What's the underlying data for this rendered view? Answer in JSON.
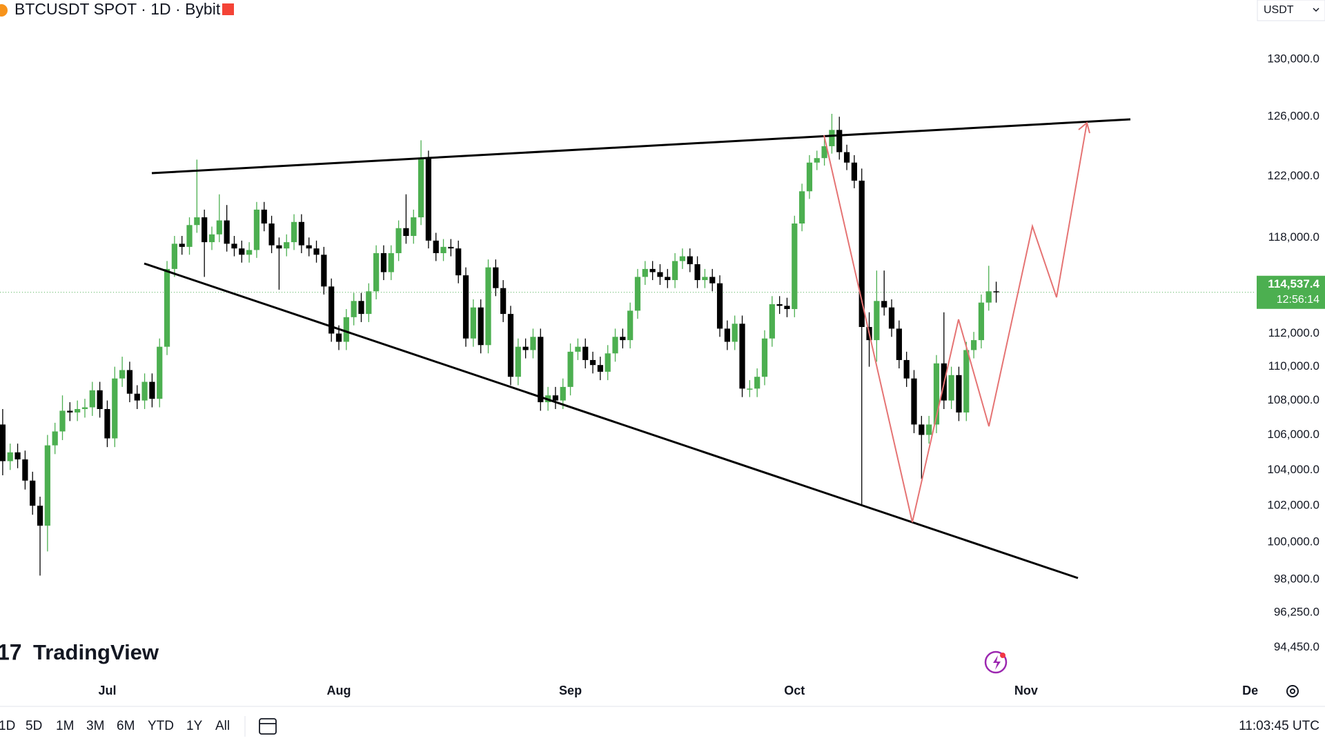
{
  "header": {
    "symbol": "BTCUSDT SPOT · 1D · Bybit",
    "currency": "USDT"
  },
  "brand": "TradingView",
  "toolbar": {
    "ranges": [
      "1D",
      "5D",
      "1M",
      "3M",
      "6M",
      "YTD",
      "1Y",
      "All"
    ],
    "clock": "11:03:45 UTC"
  },
  "chart_data": {
    "type": "candlestick",
    "log_scale": true,
    "grid": false,
    "up_color": "#4caf50",
    "down_color": "#000000",
    "ylim": [
      91500,
      134250
    ],
    "yticks": [
      {
        "value": 130000,
        "label": "130,000.0"
      },
      {
        "value": 126000,
        "label": "126,000.0"
      },
      {
        "value": 122000,
        "label": "122,000.0"
      },
      {
        "value": 118000,
        "label": "118,000.0"
      },
      {
        "value": 112000,
        "label": "112,000.0"
      },
      {
        "value": 110000,
        "label": "110,000.0"
      },
      {
        "value": 108000,
        "label": "108,000.0"
      },
      {
        "value": 106000,
        "label": "106,000.0"
      },
      {
        "value": 104000,
        "label": "104,000.0"
      },
      {
        "value": 102000,
        "label": "102,000.0"
      },
      {
        "value": 100000,
        "label": "100,000.0"
      },
      {
        "value": 98000,
        "label": "98,000.0"
      },
      {
        "value": 96250,
        "label": "96,250.0"
      },
      {
        "value": 94450,
        "label": "94,450.0"
      }
    ],
    "last_price": {
      "value": 114537.4,
      "label": "114,537.4"
    },
    "countdown": "12:56:14",
    "categories": [
      null,
      null,
      null,
      null,
      null,
      null,
      null,
      null,
      null,
      null,
      null,
      null,
      null,
      null,
      "Jul",
      null,
      null,
      null,
      null,
      null,
      null,
      null,
      null,
      null,
      null,
      null,
      null,
      null,
      null,
      null,
      null,
      null,
      null,
      null,
      null,
      null,
      null,
      null,
      null,
      null,
      null,
      null,
      null,
      null,
      null,
      "Aug",
      null,
      null,
      null,
      null,
      null,
      null,
      null,
      null,
      null,
      null,
      null,
      null,
      null,
      null,
      null,
      null,
      null,
      null,
      null,
      null,
      null,
      null,
      null,
      null,
      null,
      null,
      null,
      null,
      null,
      null,
      "Sep",
      null,
      null,
      null,
      null,
      null,
      null,
      null,
      null,
      null,
      null,
      null,
      null,
      null,
      null,
      null,
      null,
      null,
      null,
      null,
      null,
      null,
      null,
      null,
      null,
      null,
      null,
      null,
      null,
      null,
      "Oct",
      null,
      null,
      null,
      null,
      null,
      null,
      null,
      null,
      null,
      null,
      null,
      null,
      null,
      null,
      null,
      null,
      null,
      null,
      null,
      null,
      null,
      null,
      null,
      null,
      null,
      null,
      null,
      null,
      null,
      null,
      "Nov",
      null,
      null,
      null,
      null,
      null,
      null,
      null,
      null,
      null,
      null,
      null,
      null,
      null,
      null,
      null,
      null,
      null,
      null,
      null,
      null,
      null,
      null,
      null,
      null,
      null,
      null,
      null,
      null,
      null,
      "De"
    ],
    "open": [
      106600,
      104500,
      105000,
      104600,
      103400,
      102000,
      100900,
      105400,
      106200,
      107400,
      107300,
      107500,
      107600,
      108600,
      107500,
      105800,
      109300,
      109800,
      108400,
      108000,
      109100,
      108100,
      111200,
      116000,
      117600,
      117400,
      118800,
      119300,
      117700,
      118200,
      119100,
      117600,
      117300,
      116900,
      117200,
      119800,
      118900,
      117500,
      117300,
      117700,
      119000,
      117500,
      117300,
      116900,
      114900,
      112000,
      111500,
      113000,
      114000,
      113200,
      114600,
      117000,
      115800,
      117000,
      118600,
      118100,
      119300,
      123200,
      117800,
      117000,
      117400,
      117300,
      115600,
      111700,
      113600,
      111300,
      116100,
      114800,
      113200,
      109400,
      111200,
      111000,
      111800,
      107900,
      108300,
      108000,
      108800,
      110900,
      111200,
      110400,
      110100,
      109700,
      110800,
      111800,
      111600,
      113400,
      115500,
      116000,
      115800,
      115500,
      115300,
      116500,
      116800,
      116300,
      115300,
      115500,
      115100,
      112300,
      111500,
      112600,
      108700,
      108700,
      109400,
      111700,
      113800,
      113700,
      113500,
      118900,
      121000,
      122900,
      123200,
      124000,
      125100,
      123600,
      122900,
      121700,
      112400,
      111600,
      114000,
      113600,
      112300,
      110400,
      109300,
      106600,
      106000,
      106600,
      110200,
      108000,
      109500,
      107300,
      111000,
      111600,
      113900,
      114600,
      null,
      null,
      null,
      null,
      null,
      null,
      null,
      null,
      null,
      null,
      null,
      null,
      null,
      null,
      null,
      null,
      null,
      null,
      null,
      null,
      null,
      null,
      null,
      null,
      null,
      null,
      null,
      null,
      null,
      null,
      null,
      null,
      null,
      null
    ],
    "high": [
      107500,
      105500,
      105500,
      105100,
      103900,
      102500,
      106000,
      106700,
      108300,
      107900,
      108000,
      108100,
      109100,
      109100,
      108000,
      110000,
      110600,
      110300,
      108900,
      109600,
      109600,
      111700,
      116500,
      118100,
      118100,
      119300,
      123100,
      119800,
      118700,
      120800,
      120100,
      118100,
      117800,
      117700,
      120300,
      120300,
      119400,
      118000,
      118200,
      119500,
      119500,
      118000,
      117800,
      117400,
      115400,
      112500,
      113500,
      114500,
      114500,
      115100,
      117500,
      117500,
      117500,
      119100,
      120800,
      119800,
      124400,
      123700,
      118300,
      117900,
      117900,
      117800,
      116100,
      114100,
      114100,
      116600,
      116600,
      115300,
      113700,
      111700,
      111700,
      112300,
      112300,
      108800,
      108800,
      109300,
      111400,
      111700,
      111700,
      110900,
      110600,
      111300,
      112300,
      112300,
      113900,
      116000,
      116500,
      116500,
      116300,
      116000,
      117000,
      117300,
      117300,
      116800,
      116000,
      116000,
      115600,
      112800,
      113100,
      113100,
      109200,
      109900,
      112200,
      114300,
      114300,
      114200,
      119400,
      121500,
      123400,
      123700,
      124500,
      126200,
      126000,
      124100,
      123400,
      122500,
      113300,
      115900,
      115900,
      114100,
      112800,
      110900,
      109800,
      107100,
      107100,
      110700,
      113300,
      110000,
      110000,
      111500,
      112100,
      114400,
      116200,
      115200,
      null,
      null,
      null,
      null,
      null,
      null,
      null,
      null,
      null,
      null,
      null,
      null,
      null,
      null,
      null,
      null,
      null,
      null,
      null,
      null,
      null,
      null,
      null,
      null,
      null,
      null,
      null,
      null,
      null,
      null,
      null,
      null,
      null,
      null
    ],
    "low": [
      103700,
      104000,
      104100,
      102900,
      101500,
      98200,
      99500,
      104900,
      105700,
      106800,
      106800,
      107000,
      107100,
      107000,
      105300,
      105300,
      108800,
      107900,
      107500,
      107500,
      107600,
      107600,
      110700,
      115500,
      116900,
      116900,
      118300,
      115500,
      117200,
      117700,
      117100,
      116800,
      116400,
      116400,
      116700,
      118400,
      117000,
      114700,
      116800,
      117200,
      117000,
      116800,
      116400,
      114400,
      111500,
      111000,
      111000,
      112500,
      112700,
      112700,
      114100,
      115300,
      115300,
      116500,
      117600,
      117600,
      118800,
      117300,
      116500,
      116500,
      116800,
      115100,
      111200,
      111200,
      110800,
      110800,
      114300,
      112700,
      108900,
      108900,
      110500,
      110500,
      107400,
      107400,
      107500,
      107500,
      108300,
      110400,
      109900,
      109600,
      109200,
      109200,
      110300,
      111100,
      111100,
      112900,
      115000,
      115300,
      115000,
      114800,
      114800,
      116000,
      115800,
      114800,
      114800,
      114600,
      111800,
      111000,
      111000,
      108200,
      108200,
      108200,
      108900,
      111200,
      113200,
      113000,
      113000,
      118400,
      120500,
      122400,
      122700,
      123500,
      123100,
      122400,
      121200,
      102000,
      110000,
      110300,
      113100,
      111800,
      109900,
      108800,
      106100,
      103500,
      105500,
      106100,
      107500,
      107500,
      106800,
      106800,
      110500,
      111100,
      113400,
      113900,
      null,
      null,
      null,
      null,
      null,
      null,
      null,
      null,
      null,
      null,
      null,
      null,
      null,
      null,
      null,
      null,
      null,
      null,
      null,
      null,
      null,
      null,
      null,
      null,
      null,
      null,
      null,
      null,
      null,
      null,
      null,
      null,
      null,
      null
    ],
    "close": [
      104500,
      105000,
      104600,
      103400,
      102000,
      100900,
      105400,
      106200,
      107400,
      107300,
      107500,
      107600,
      108600,
      107500,
      105800,
      109300,
      109800,
      108400,
      108000,
      109100,
      108100,
      111200,
      116000,
      117600,
      117400,
      118800,
      119300,
      117700,
      118200,
      119100,
      117600,
      117300,
      116900,
      117200,
      119800,
      118900,
      117500,
      117300,
      117700,
      119000,
      117500,
      117300,
      116900,
      114900,
      112000,
      111500,
      113000,
      114000,
      113200,
      114600,
      117000,
      115800,
      117000,
      118600,
      118100,
      119300,
      123200,
      117800,
      117000,
      117400,
      117300,
      115600,
      111700,
      113600,
      111300,
      116100,
      114800,
      113200,
      109400,
      111200,
      111000,
      111800,
      107900,
      108300,
      108000,
      108800,
      110900,
      111200,
      110400,
      110100,
      109700,
      110800,
      111800,
      111600,
      113400,
      115500,
      116000,
      115800,
      115500,
      115300,
      116500,
      116800,
      116300,
      115300,
      115500,
      115100,
      112300,
      111500,
      112600,
      108700,
      108700,
      109400,
      111700,
      113800,
      113700,
      113500,
      118900,
      121000,
      122900,
      123200,
      124000,
      125100,
      123600,
      122900,
      121700,
      112400,
      111600,
      114000,
      113600,
      112300,
      110400,
      109300,
      106600,
      106000,
      106600,
      110200,
      108000,
      109500,
      107300,
      111000,
      111600,
      113900,
      114600,
      114537.4,
      null,
      null,
      null,
      null,
      null,
      null,
      null,
      null,
      null,
      null,
      null,
      null,
      null,
      null,
      null,
      null,
      null,
      null,
      null,
      null,
      null,
      null,
      null,
      null,
      null,
      null,
      null,
      null,
      null,
      null,
      null,
      null,
      null,
      null
    ]
  }
}
